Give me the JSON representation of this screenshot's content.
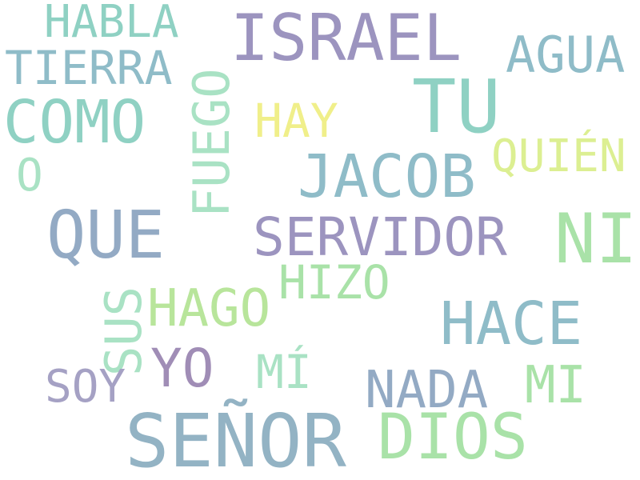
{
  "palette": {
    "background": "#ffffff",
    "purple": "#9c94bf",
    "purple_dark": "#a08db6",
    "teal": "#8fd1c3",
    "teal_blue": "#8fbcc8",
    "blue_grey": "#93aac4",
    "green": "#a9e2a8",
    "light_green": "#b8e59b",
    "yellow": "#f0ef8a",
    "yellow_green": "#dcef92"
  },
  "words": [
    {
      "key": "israel",
      "text": "ISRAEL",
      "color": "#9c94bf"
    },
    {
      "key": "habla",
      "text": "HABLA",
      "color": "#8fd1c3"
    },
    {
      "key": "agua",
      "text": "AGUA",
      "color": "#8fbcc8"
    },
    {
      "key": "tierra",
      "text": "TIERRA",
      "color": "#8fbcc8"
    },
    {
      "key": "tu",
      "text": "TU",
      "color": "#8fd1c3"
    },
    {
      "key": "como",
      "text": "COMO",
      "color": "#8fd1c3"
    },
    {
      "key": "fuego",
      "text": "FUEGO",
      "color": "#a9e2c4"
    },
    {
      "key": "hay",
      "text": "HAY",
      "color": "#f0ef8a"
    },
    {
      "key": "quien",
      "text": "QUIÉN",
      "color": "#dcef92"
    },
    {
      "key": "o",
      "text": "O",
      "color": "#a9e2c4"
    },
    {
      "key": "jacob",
      "text": "JACOB",
      "color": "#8fbcc8"
    },
    {
      "key": "que",
      "text": "QUE",
      "color": "#93aac4"
    },
    {
      "key": "ni",
      "text": "NI",
      "color": "#a9e2a8"
    },
    {
      "key": "servidor",
      "text": "SERVIDOR",
      "color": "#9c94bf"
    },
    {
      "key": "hizo",
      "text": "HIZO",
      "color": "#a9e2a8"
    },
    {
      "key": "sus",
      "text": "SUS",
      "color": "#a9e2c4"
    },
    {
      "key": "hago",
      "text": "HAGO",
      "color": "#b8e59b"
    },
    {
      "key": "hace",
      "text": "HACE",
      "color": "#8fbcc8"
    },
    {
      "key": "yo",
      "text": "YO",
      "color": "#a08db6"
    },
    {
      "key": "mi_accent",
      "text": "MÍ",
      "color": "#a9e2c4"
    },
    {
      "key": "soy",
      "text": "SOY",
      "color": "#a5a1c4"
    },
    {
      "key": "nada",
      "text": "NADA",
      "color": "#93aac4"
    },
    {
      "key": "mi",
      "text": "MI",
      "color": "#a9e2a8"
    },
    {
      "key": "senor",
      "text": "SEÑOR",
      "color": "#93b3c4"
    },
    {
      "key": "dios",
      "text": "DIOS",
      "color": "#a9e2a8"
    }
  ]
}
